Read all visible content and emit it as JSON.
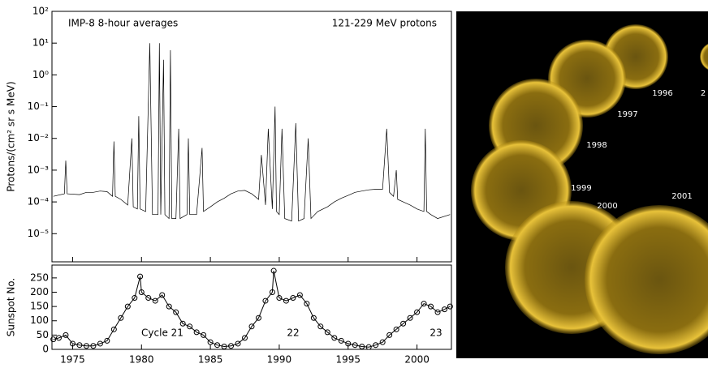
{
  "chart_data": [
    {
      "type": "line",
      "log_y": true,
      "ylabel": "Protons/(cm² sr s MeV)",
      "annotations": [
        "IMP-8 8-hour averages",
        "121-229 MeV protons"
      ],
      "xlim": [
        1973.5,
        2002.5
      ],
      "ylim": [
        1.3e-06,
        100
      ],
      "yticks": [
        {
          "value": 1e-05,
          "label": "10⁻⁵"
        },
        {
          "value": 0.0001,
          "label": "10⁻⁴"
        },
        {
          "value": 0.001,
          "label": "10⁻³"
        },
        {
          "value": 0.01,
          "label": "10⁻²"
        },
        {
          "value": 0.1,
          "label": "10⁻¹"
        },
        {
          "value": 1,
          "label": "10⁰"
        },
        {
          "value": 10,
          "label": "10¹"
        },
        {
          "value": 100,
          "label": "10²"
        }
      ],
      "x": [
        1973.6,
        1974.4,
        1974.5,
        1974.6,
        1975.5,
        1976.0,
        1976.5,
        1977.0,
        1977.5,
        1977.9,
        1978.0,
        1978.1,
        1978.5,
        1979.0,
        1979.3,
        1979.4,
        1979.7,
        1979.8,
        1979.9,
        1980.3,
        1980.6,
        1980.8,
        1981.2,
        1981.3,
        1981.4,
        1981.6,
        1981.7,
        1982.0,
        1982.1,
        1982.2,
        1982.5,
        1982.7,
        1982.8,
        1983.3,
        1983.4,
        1983.5,
        1984.0,
        1984.4,
        1984.5,
        1985.0,
        1985.5,
        1986.0,
        1986.5,
        1987.0,
        1987.5,
        1988.0,
        1988.5,
        1988.7,
        1989.0,
        1989.2,
        1989.5,
        1989.7,
        1989.8,
        1990.0,
        1990.2,
        1990.4,
        1990.9,
        1991.2,
        1991.4,
        1991.8,
        1992.1,
        1992.3,
        1992.8,
        1993.5,
        1994.0,
        1994.5,
        1995.0,
        1995.5,
        1996.0,
        1996.5,
        1997.0,
        1997.5,
        1997.8,
        1998.0,
        1998.3,
        1998.5,
        1998.6,
        1999.0,
        1999.5,
        2000.0,
        2000.5,
        2000.6,
        2000.7,
        2001.0,
        2001.5,
        2002.4
      ],
      "series": [
        {
          "color": "#000000",
          "values": [
            0.00015,
            0.00018,
            0.002,
            0.00018,
            0.00017,
            0.0002,
            0.0002,
            0.00022,
            0.00021,
            0.00015,
            0.008,
            0.00015,
            0.00012,
            8e-05,
            0.01,
            7e-05,
            6e-05,
            0.05,
            6e-05,
            5e-05,
            10,
            4e-05,
            4e-05,
            10,
            4e-05,
            3,
            4e-05,
            3e-05,
            6,
            3e-05,
            3e-05,
            0.02,
            3e-05,
            4e-05,
            0.01,
            4e-05,
            4e-05,
            0.005,
            5e-05,
            7e-05,
            0.0001,
            0.00013,
            0.00018,
            0.00022,
            0.00023,
            0.00018,
            0.00012,
            0.003,
            8e-05,
            0.02,
            6e-05,
            0.1,
            5e-05,
            4e-05,
            0.02,
            3e-05,
            2.5e-05,
            0.03,
            2.5e-05,
            3e-05,
            0.01,
            3e-05,
            5e-05,
            7e-05,
            0.0001,
            0.00013,
            0.00016,
            0.0002,
            0.00022,
            0.00024,
            0.00025,
            0.00025,
            0.02,
            0.0002,
            0.00015,
            0.001,
            0.00012,
            0.0001,
            8e-05,
            6e-05,
            5e-05,
            0.02,
            5e-05,
            4e-05,
            3e-05,
            4e-05
          ]
        }
      ]
    },
    {
      "type": "line",
      "markers": "open-circle",
      "ylabel": "Sunspot No.",
      "annotations": [
        "Cycle 21",
        "22",
        "23"
      ],
      "xlim": [
        1973.5,
        2002.5
      ],
      "ylim": [
        0,
        295
      ],
      "xticks": [
        1975,
        1980,
        1985,
        1990,
        1995,
        2000
      ],
      "yticks": [
        0,
        50,
        100,
        150,
        200,
        250
      ],
      "x": [
        1973.6,
        1974.0,
        1974.5,
        1975.0,
        1975.5,
        1976.0,
        1976.5,
        1977.0,
        1977.5,
        1978.0,
        1978.5,
        1979.0,
        1979.5,
        1979.9,
        1980.0,
        1980.5,
        1981.0,
        1981.5,
        1982.0,
        1982.5,
        1983.0,
        1983.5,
        1984.0,
        1984.5,
        1985.0,
        1985.5,
        1986.0,
        1986.5,
        1987.0,
        1987.5,
        1988.0,
        1988.5,
        1989.0,
        1989.5,
        1989.6,
        1990.0,
        1990.5,
        1991.0,
        1991.5,
        1992.0,
        1992.5,
        1993.0,
        1993.5,
        1994.0,
        1994.5,
        1995.0,
        1995.5,
        1996.0,
        1996.5,
        1997.0,
        1997.5,
        1998.0,
        1998.5,
        1999.0,
        1999.5,
        2000.0,
        2000.5,
        2001.0,
        2001.5,
        2002.0,
        2002.4
      ],
      "series": [
        {
          "color": "#000000",
          "values": [
            35,
            40,
            50,
            20,
            15,
            12,
            12,
            20,
            30,
            70,
            110,
            150,
            180,
            255,
            200,
            180,
            170,
            190,
            150,
            130,
            90,
            80,
            60,
            50,
            25,
            15,
            10,
            12,
            20,
            40,
            80,
            110,
            170,
            200,
            275,
            180,
            170,
            180,
            190,
            160,
            110,
            80,
            60,
            40,
            30,
            20,
            15,
            10,
            8,
            15,
            25,
            50,
            70,
            90,
            110,
            130,
            160,
            150,
            130,
            140,
            150
          ]
        }
      ]
    }
  ],
  "image": {
    "labels": [
      "1996",
      "1997",
      "1998",
      "1999",
      "2000",
      "2001",
      "2"
    ]
  }
}
